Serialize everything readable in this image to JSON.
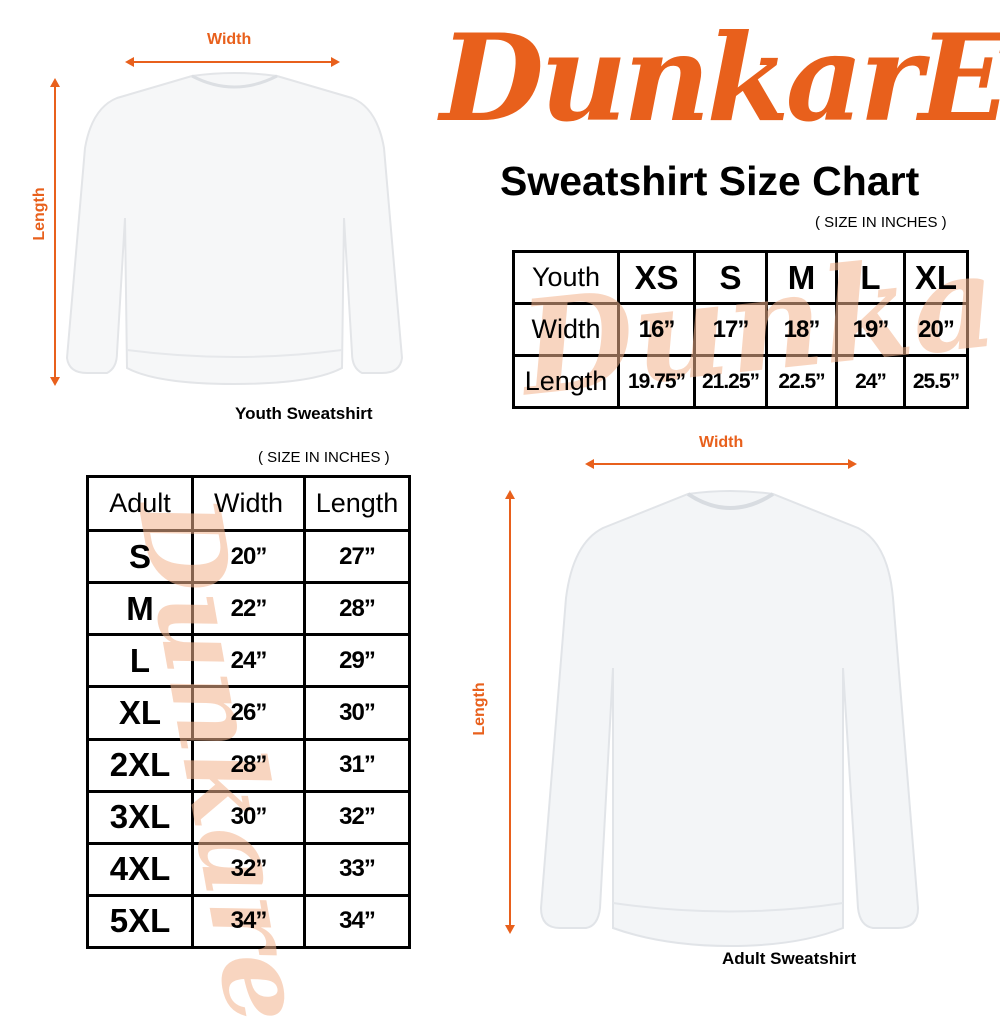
{
  "brand": {
    "logo_text": "DunkarE",
    "color": "#e8601c"
  },
  "title": "Sweatshirt Size Chart",
  "youth": {
    "units_note": "( SIZE IN INCHES )",
    "caption": "Youth Sweatshirt",
    "width_label": "Width",
    "length_label": "Length",
    "table": {
      "header": [
        "Youth",
        "XS",
        "S",
        "M",
        "L",
        "XL"
      ],
      "rows": [
        [
          "Width",
          "16”",
          "17”",
          "18”",
          "19”",
          "20”"
        ],
        [
          "Length",
          "19.75”",
          "21.25”",
          "22.5”",
          "24”",
          "25.5”"
        ]
      ]
    }
  },
  "adult": {
    "units_note": "( SIZE IN INCHES )",
    "caption": "Adult Sweatshirt",
    "width_label": "Width",
    "length_label": "Length",
    "table": {
      "header": [
        "Adult",
        "Width",
        "Length"
      ],
      "rows": [
        [
          "S",
          "20”",
          "27”"
        ],
        [
          "M",
          "22”",
          "28”"
        ],
        [
          "L",
          "24”",
          "29”"
        ],
        [
          "XL",
          "26”",
          "30”"
        ],
        [
          "2XL",
          "28”",
          "31”"
        ],
        [
          "3XL",
          "30”",
          "32”"
        ],
        [
          "4XL",
          "32”",
          "33”"
        ],
        [
          "5XL",
          "34”",
          "34”"
        ]
      ]
    }
  }
}
